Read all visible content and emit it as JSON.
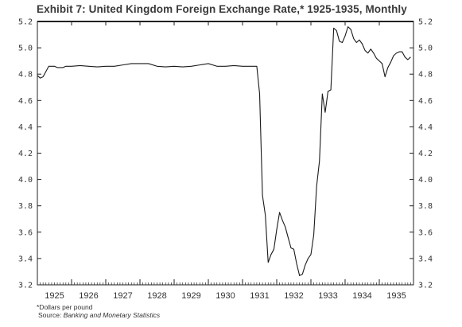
{
  "chart_data": {
    "type": "line",
    "title": "Exhibit 7: United Kingdom Foreign Exchange Rate,* 1925-1935, Monthly",
    "xlabel": "",
    "ylabel": "",
    "ylim": [
      3.2,
      5.2
    ],
    "yticks": [
      "3.2",
      "3.4",
      "3.6",
      "3.8",
      "4.0",
      "4.2",
      "4.4",
      "4.6",
      "4.8",
      "5.0",
      "5.2"
    ],
    "year_labels": [
      "1925",
      "1926",
      "1927",
      "1928",
      "1929",
      "1930",
      "1931",
      "1932",
      "1933",
      "1934",
      "1935"
    ],
    "xlim": [
      1925.0,
      1936.0
    ],
    "grid": false,
    "series": [
      {
        "x": [
          1925.0,
          1925.083,
          1925.167,
          1925.25,
          1925.333,
          1925.417,
          1925.5,
          1925.583,
          1925.667,
          1925.75,
          1925.833,
          1925.917,
          1926.0,
          1926.25,
          1926.5,
          1926.75,
          1927.0,
          1927.25,
          1927.5,
          1927.75,
          1928.0,
          1928.25,
          1928.5,
          1928.75,
          1929.0,
          1929.25,
          1929.5,
          1929.75,
          1930.0,
          1930.25,
          1930.5,
          1930.75,
          1931.0,
          1931.25,
          1931.417,
          1931.5,
          1931.583,
          1931.667,
          1931.75,
          1931.833,
          1931.917,
          1932.0,
          1932.083,
          1932.167,
          1932.25,
          1932.333,
          1932.417,
          1932.5,
          1932.583,
          1932.667,
          1932.75,
          1932.833,
          1932.917,
          1933.0,
          1933.083,
          1933.167,
          1933.25,
          1933.333,
          1933.417,
          1933.5,
          1933.583,
          1933.667,
          1933.75,
          1933.833,
          1933.917,
          1934.0,
          1934.083,
          1934.167,
          1934.25,
          1934.333,
          1934.417,
          1934.5,
          1934.583,
          1934.667,
          1934.75,
          1934.833,
          1934.917,
          1935.0,
          1935.083,
          1935.167,
          1935.25,
          1935.333,
          1935.417,
          1935.5,
          1935.583,
          1935.667,
          1935.75,
          1935.833,
          1935.917
        ],
        "y": [
          4.79,
          4.77,
          4.78,
          4.82,
          4.86,
          4.86,
          4.86,
          4.85,
          4.85,
          4.85,
          4.86,
          4.86,
          4.86,
          4.865,
          4.86,
          4.855,
          4.86,
          4.86,
          4.87,
          4.88,
          4.88,
          4.88,
          4.86,
          4.855,
          4.86,
          4.855,
          4.86,
          4.87,
          4.88,
          4.86,
          4.86,
          4.865,
          4.86,
          4.86,
          4.86,
          4.65,
          3.88,
          3.73,
          3.37,
          3.43,
          3.47,
          3.62,
          3.75,
          3.69,
          3.64,
          3.56,
          3.48,
          3.47,
          3.36,
          3.27,
          3.28,
          3.35,
          3.4,
          3.43,
          3.58,
          3.95,
          4.14,
          4.65,
          4.51,
          4.67,
          4.68,
          5.15,
          5.13,
          5.05,
          5.04,
          5.09,
          5.16,
          5.14,
          5.07,
          5.04,
          5.06,
          5.03,
          4.98,
          4.96,
          4.99,
          4.96,
          4.92,
          4.9,
          4.88,
          4.78,
          4.85,
          4.89,
          4.94,
          4.96,
          4.97,
          4.97,
          4.93,
          4.91,
          4.93
        ]
      }
    ]
  },
  "footnote": "*Dollars per pound",
  "source": {
    "prefix": "Source: ",
    "name": "Banking and Monetary Statistics"
  }
}
